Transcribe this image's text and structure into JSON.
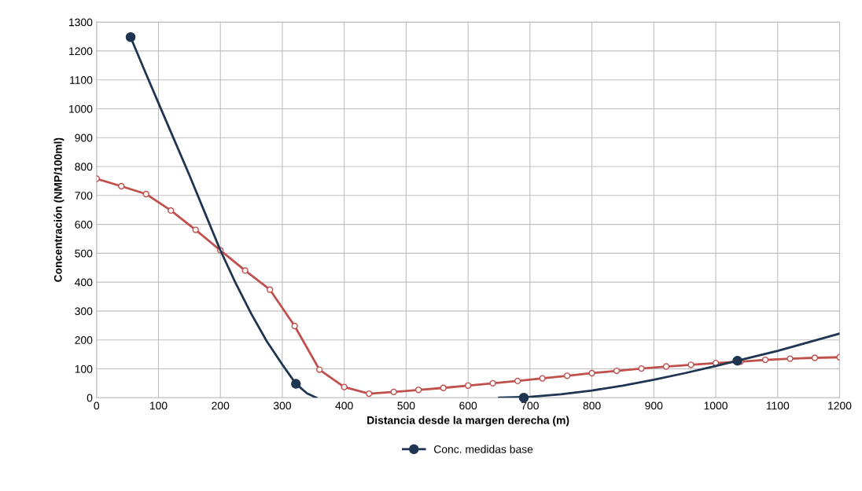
{
  "chart_data": {
    "type": "line",
    "xlabel": "Distancia desde la margen derecha (m)",
    "ylabel": "Concentración (NMP/100ml)",
    "xlim": [
      0,
      1200
    ],
    "xticks": [
      0,
      100,
      200,
      300,
      400,
      500,
      600,
      700,
      800,
      900,
      1000,
      1100,
      1200
    ],
    "ylim": [
      0,
      1300
    ],
    "yticks": [
      0,
      100,
      200,
      300,
      400,
      500,
      600,
      700,
      800,
      900,
      1000,
      1100,
      1200,
      1300
    ],
    "grid": true,
    "legend": "bottom",
    "series": [
      {
        "color": "#c0504d",
        "marker": "circle",
        "x": [
          0,
          40,
          80,
          120,
          160,
          200,
          240,
          280,
          320,
          360,
          400,
          440,
          480,
          520,
          560,
          600,
          640,
          680,
          720,
          760,
          800,
          840,
          880,
          920,
          960,
          1000,
          1040,
          1080,
          1120,
          1160,
          1200
        ],
        "values": [
          758,
          732,
          705,
          648,
          581,
          510,
          440,
          374,
          248,
          97,
          37,
          14,
          20,
          27,
          34,
          42,
          50,
          58,
          67,
          76,
          85,
          93,
          101,
          108,
          114,
          120,
          125,
          131,
          135,
          138,
          140
        ]
      },
      {
        "color": "#1f3552",
        "marker": "none",
        "x": [
          55,
          80,
          100,
          125,
          150,
          175,
          200,
          225,
          250,
          275,
          300,
          322,
          340,
          355,
          360,
          650,
          700,
          750,
          800,
          850,
          900,
          950,
          1000,
          1035,
          1100,
          1150,
          1200
        ],
        "values": [
          1248,
          1120,
          1020,
          895,
          770,
          640,
          510,
          395,
          290,
          195,
          115,
          48,
          15,
          0,
          null,
          0,
          3,
          12,
          25,
          42,
          62,
          85,
          110,
          128,
          162,
          192,
          222
        ]
      },
      {
        "type": "scatter",
        "name": "Conc. medidas base",
        "color": "#1f3552",
        "marker": "circle",
        "x": [
          55,
          322,
          690,
          1035
        ],
        "values": [
          1248,
          48,
          0,
          128
        ]
      }
    ]
  }
}
